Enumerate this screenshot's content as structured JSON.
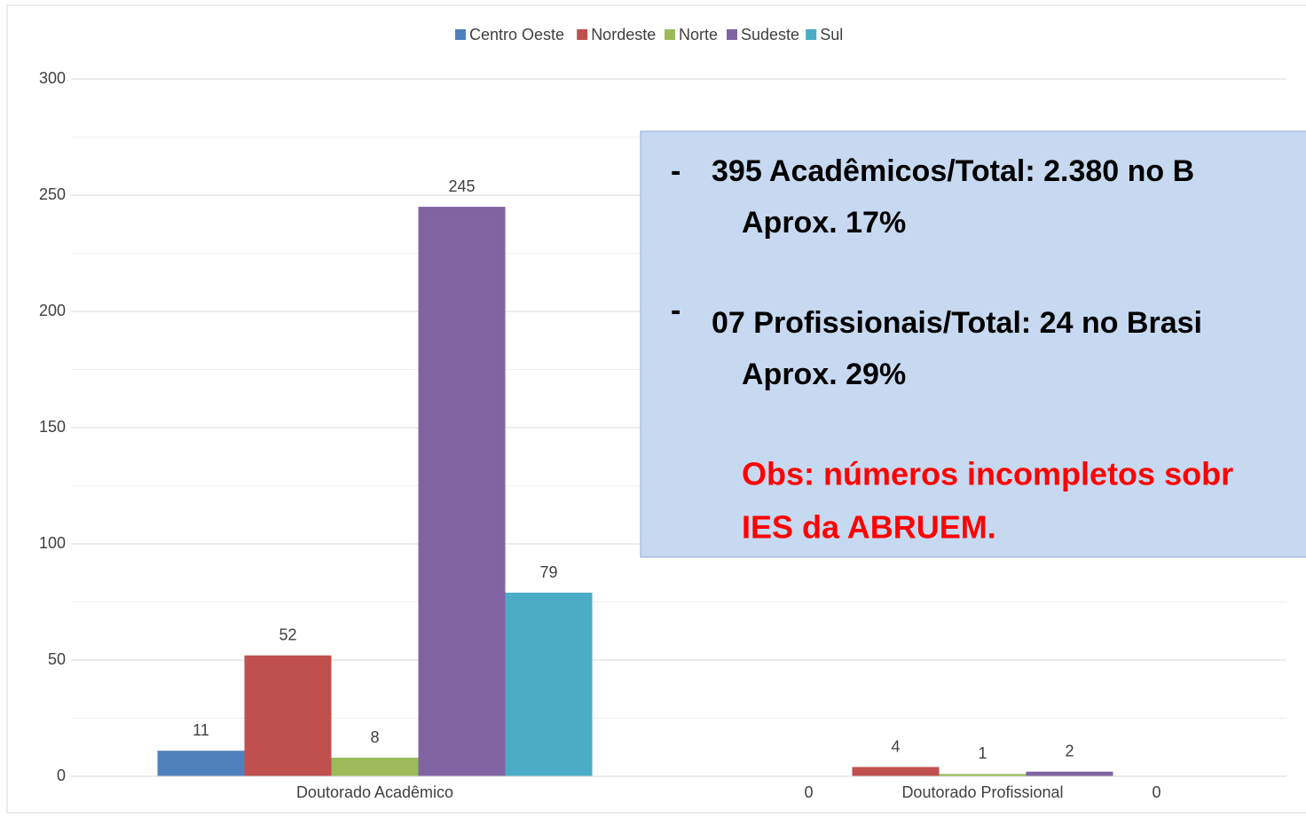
{
  "chart_data": {
    "type": "bar",
    "categories": [
      "Doutorado Acadêmico",
      "Doutorado Profissional"
    ],
    "series": [
      {
        "name": "Centro Oeste",
        "color": "#4f81bd",
        "values": [
          11,
          0
        ]
      },
      {
        "name": "Nordeste",
        "color": "#c0504d",
        "values": [
          52,
          4
        ]
      },
      {
        "name": "Norte",
        "color": "#9bbb59",
        "values": [
          8,
          1
        ]
      },
      {
        "name": "Sudeste",
        "color": "#8064a2",
        "values": [
          245,
          2
        ]
      },
      {
        "name": "Sul",
        "color": "#4bacc6",
        "values": [
          79,
          0
        ]
      }
    ],
    "ylim": [
      0,
      300
    ],
    "yticks": [
      0,
      50,
      100,
      150,
      200,
      250,
      300
    ],
    "yminorticks": [
      25,
      75,
      125,
      175,
      225,
      275
    ],
    "grid": true,
    "legend": "top",
    "annotation": {
      "bullet": "-",
      "items": [
        [
          "395 Acadêmicos/Total: 2.380 no B",
          "Aprox. 17%"
        ],
        [
          "07 Profissionais/Total: 24 no Brasi",
          "Aprox. 29%"
        ]
      ],
      "note": [
        "Obs: números incompletos sobr",
        "IES da ABRUEM."
      ]
    }
  }
}
